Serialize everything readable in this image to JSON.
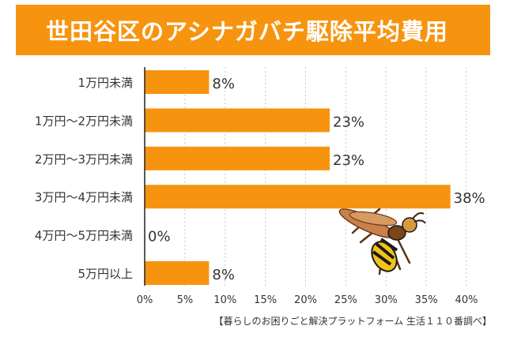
{
  "title": "世田谷区のアシナガバチ駆除平均費用",
  "source": "【暮らしのお困りごと解決プラットフォーム 生活１１０番調べ】",
  "colors": {
    "bar": "#f7940f",
    "title_bg": "#f7940f",
    "grid": "#c8c8c8",
    "axis": "#222222",
    "text": "#333333"
  },
  "decoration": {
    "icon": "wasp-illustration"
  },
  "chart_data": {
    "type": "bar",
    "orientation": "horizontal",
    "title": "世田谷区のアシナガバチ駆除平均費用",
    "categories": [
      "1万円未満",
      "1万円〜2万円未満",
      "2万円〜3万円未満",
      "3万円〜4万円未満",
      "4万円〜5万円未満",
      "5万円以上"
    ],
    "values": [
      8,
      23,
      23,
      38,
      0,
      8
    ],
    "value_labels": [
      "8%",
      "23%",
      "23%",
      "38%",
      "0%",
      "8%"
    ],
    "xlim": [
      0,
      40
    ],
    "xticks": [
      "0%",
      "5%",
      "10%",
      "15%",
      "20%",
      "25%",
      "30%",
      "35%",
      "40%"
    ],
    "grid": "vertical-dashed"
  }
}
